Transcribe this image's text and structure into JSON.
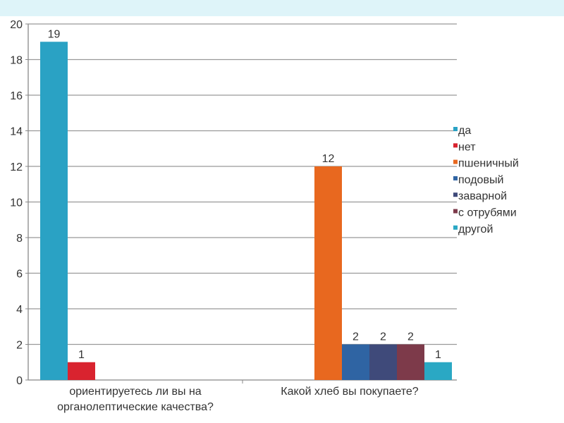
{
  "chart_data": {
    "type": "bar",
    "categories": [
      "ориентируетесь ли вы на органолептические качества?",
      "Какой хлеб вы покупаете?"
    ],
    "category_lines": [
      [
        "ориентируетесь ли вы на",
        "органолептические качества?"
      ],
      [
        "Какой хлеб вы покупаете?"
      ]
    ],
    "series": [
      {
        "name": "да",
        "values": [
          19,
          0
        ],
        "color": "#2aa2c4"
      },
      {
        "name": "нет",
        "values": [
          1,
          0
        ],
        "color": "#d9232f"
      },
      {
        "name": "пшеничный",
        "values": [
          0,
          12
        ],
        "color": "#e8681f"
      },
      {
        "name": "подовый",
        "values": [
          0,
          2
        ],
        "color": "#2f64a3"
      },
      {
        "name": "заварной",
        "values": [
          0,
          2
        ],
        "color": "#3f4a7a"
      },
      {
        "name": "с отрубями",
        "values": [
          0,
          2
        ],
        "color": "#7d3a4a"
      },
      {
        "name": "другой",
        "values": [
          0,
          1
        ],
        "color": "#2aa8c4"
      }
    ],
    "ylim": [
      0,
      20
    ],
    "yticks": [
      0,
      2,
      4,
      6,
      8,
      10,
      12,
      14,
      16,
      18,
      20
    ],
    "grid": true,
    "data_labels": true,
    "legend": "right",
    "title": "",
    "xlabel": "",
    "ylabel": ""
  },
  "colors": {
    "top_band": "#def4f9"
  }
}
